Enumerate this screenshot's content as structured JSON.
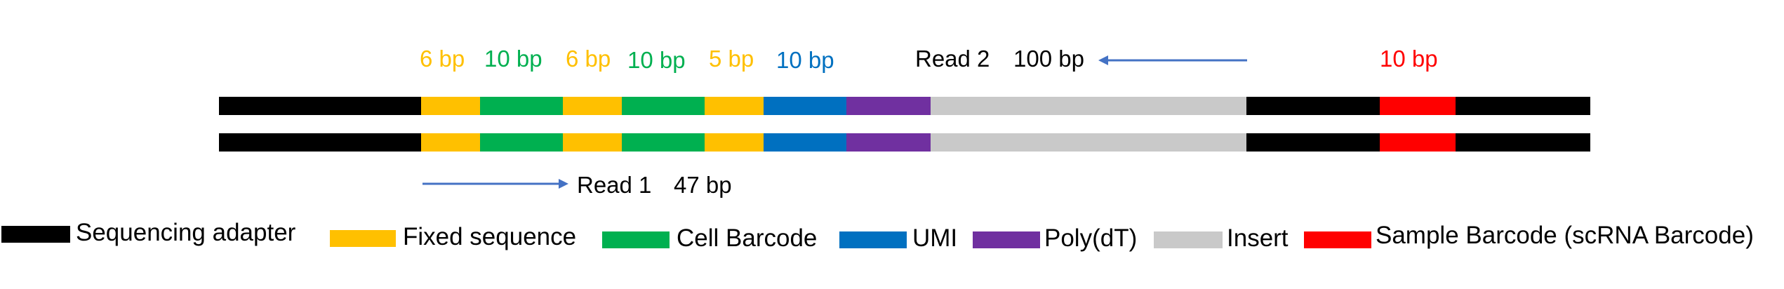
{
  "colors": {
    "adapter": "#000000",
    "fixed": "#FFC000",
    "cell_barcode": "#00B050",
    "umi": "#0070C0",
    "polydt": "#7030A0",
    "insert": "#C9C9C9",
    "sample_barcode": "#FF0000",
    "arrow": "#4472C4"
  },
  "top_labels": [
    {
      "text": "6 bp",
      "color": "#FFC000"
    },
    {
      "text": "10 bp",
      "color": "#00B050"
    },
    {
      "text": "6 bp",
      "color": "#FFC000"
    },
    {
      "text": "10 bp",
      "color": "#00B050"
    },
    {
      "text": "5 bp",
      "color": "#FFC000"
    },
    {
      "text": "10 bp",
      "color": "#0070C0"
    }
  ],
  "read2": {
    "label": "Read 2",
    "length": "100 bp"
  },
  "sample_bp_label": "10 bp",
  "read1": {
    "label": "Read 1",
    "length": "47 bp"
  },
  "legend": [
    {
      "key": "adapter",
      "label": "Sequencing adapter"
    },
    {
      "key": "fixed",
      "label": "Fixed sequence"
    },
    {
      "key": "cell_barcode",
      "label": "Cell Barcode"
    },
    {
      "key": "umi",
      "label": "UMI"
    },
    {
      "key": "polydt",
      "label": "Poly(dT)"
    },
    {
      "key": "insert",
      "label": "Insert"
    },
    {
      "key": "sample_barcode",
      "label": "Sample Barcode (scRNA Barcode)"
    }
  ]
}
